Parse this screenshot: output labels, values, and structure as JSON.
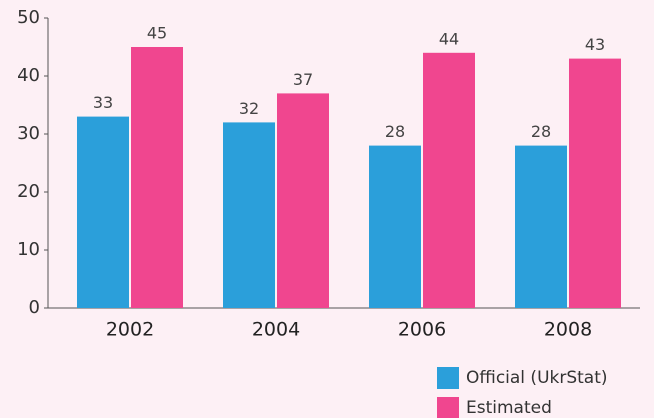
{
  "chart_data": {
    "type": "bar",
    "categories": [
      "2002",
      "2004",
      "2006",
      "2008"
    ],
    "series": [
      {
        "name": "Official (UkrStat)",
        "color": "#2b9fda",
        "values": [
          33,
          32,
          28,
          28
        ]
      },
      {
        "name": "Estimated",
        "color": "#f0468f",
        "values": [
          45,
          37,
          44,
          43
        ]
      }
    ],
    "ylim": [
      0,
      50
    ],
    "yticks": [
      0,
      10,
      20,
      30,
      40,
      50
    ],
    "grid": false,
    "legend": "bottom-right"
  }
}
